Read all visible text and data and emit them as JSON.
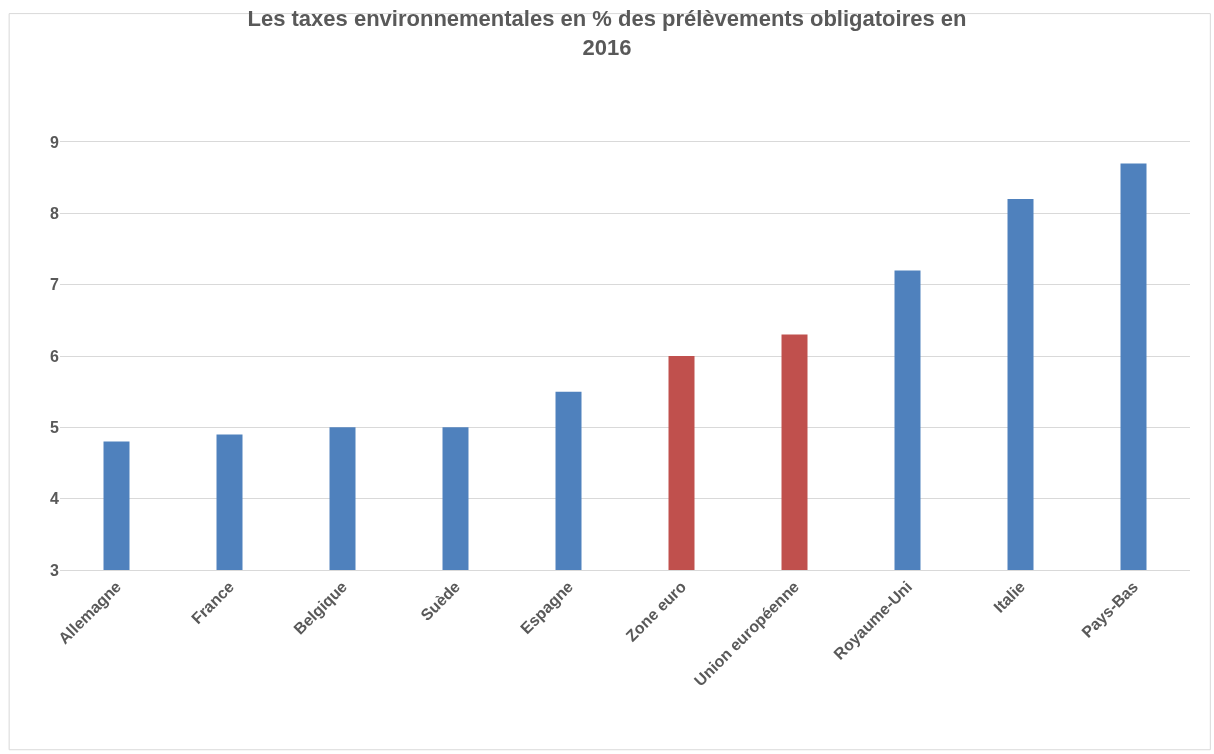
{
  "chart_data": {
    "type": "bar",
    "title": "Les taxes environnementales en % des prélèvements obligatoires en 2016",
    "categories": [
      "Allemagne",
      "France",
      "Belgique",
      "Suède",
      "Espagne",
      "Zone euro",
      "Union européenne",
      "Royaume-Uni",
      "Italie",
      "Pays-Bas"
    ],
    "values": [
      4.8,
      4.9,
      5.0,
      5.0,
      5.5,
      6.0,
      6.3,
      7.2,
      8.2,
      8.7
    ],
    "colors": [
      "#4f81bd",
      "#4f81bd",
      "#4f81bd",
      "#4f81bd",
      "#4f81bd",
      "#c0504d",
      "#c0504d",
      "#4f81bd",
      "#4f81bd",
      "#4f81bd"
    ],
    "ylim": [
      3,
      9
    ],
    "yticks": [
      3,
      4,
      5,
      6,
      7,
      8,
      9
    ],
    "grid": "y"
  }
}
